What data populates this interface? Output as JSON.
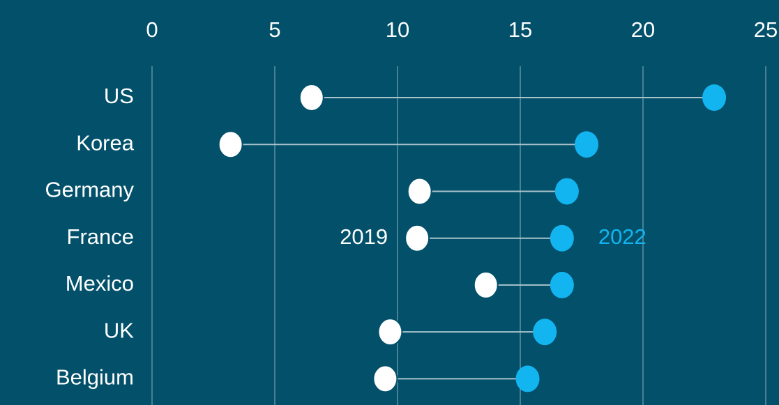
{
  "chart_data": {
    "type": "dumbbell",
    "categories": [
      "US",
      "Korea",
      "Germany",
      "France",
      "Mexico",
      "UK",
      "Belgium"
    ],
    "series": [
      {
        "name": "2019",
        "color": "#ffffff",
        "values": [
          6.5,
          3.2,
          10.9,
          10.8,
          13.6,
          9.7,
          9.5
        ]
      },
      {
        "name": "2022",
        "color": "#12b5f0",
        "values": [
          22.9,
          17.7,
          16.9,
          16.7,
          16.7,
          16.0,
          15.3
        ]
      }
    ],
    "xlim": [
      0,
      25.5
    ],
    "xticks": [
      0,
      5,
      10,
      15,
      20,
      25
    ],
    "grid": true
  }
}
